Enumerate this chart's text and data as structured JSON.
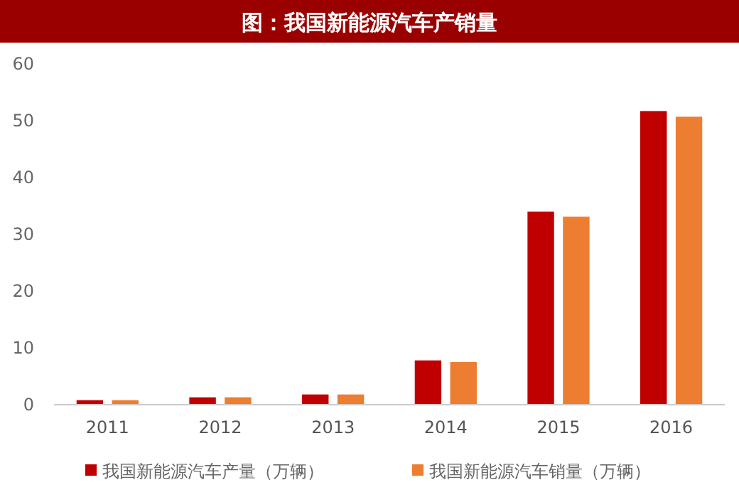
{
  "chart_data": {
    "type": "bar",
    "title": "图：我国新能源汽车产销量",
    "categories": [
      "2011",
      "2012",
      "2013",
      "2014",
      "2015",
      "2016"
    ],
    "series": [
      {
        "name": "我国新能源汽车产量（万辆）",
        "color": "#c00000",
        "values": [
          0.8,
          1.3,
          1.8,
          7.8,
          34.0,
          51.7
        ]
      },
      {
        "name": "我国新能源汽车销量（万辆）",
        "color": "#ed7d31",
        "values": [
          0.8,
          1.3,
          1.8,
          7.5,
          33.1,
          50.7
        ]
      }
    ],
    "ylim": [
      0,
      60
    ],
    "yticks": [
      0,
      10,
      20,
      30,
      40,
      50,
      60
    ],
    "grid": false,
    "legend": "bottom"
  }
}
